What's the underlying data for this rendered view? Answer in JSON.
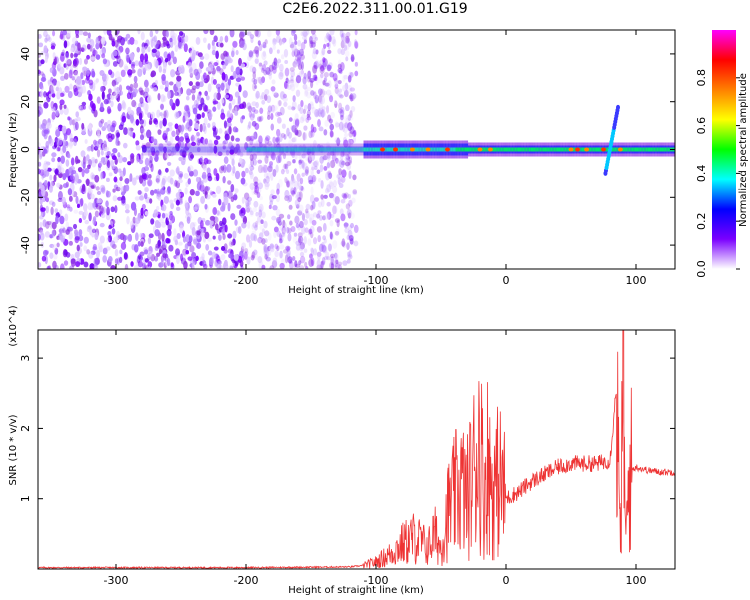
{
  "page": {
    "title": "C2E6.2022.311.00.01.G19"
  },
  "chart_data": [
    {
      "type": "heatmap",
      "title": "C2E6.2022.311.00.01.G19",
      "xlabel": "Height of straight line (km)",
      "ylabel": "Frequency (Hz)",
      "xlim": [
        -360,
        130
      ],
      "ylim": [
        -50,
        50
      ],
      "xticks": [
        -300,
        -200,
        -100,
        0,
        100
      ],
      "yticks": [
        -40,
        -20,
        0,
        20,
        40
      ],
      "colorbar": {
        "label": "Normalized spectral amplitude",
        "range": [
          0.0,
          1.0
        ],
        "ticks": [
          0.0,
          0.2,
          0.4,
          0.6,
          0.8
        ],
        "colors": [
          "#ffffff",
          "#7a00ff",
          "#0000ff",
          "#00ffff",
          "#00ff00",
          "#ffff00",
          "#ff8000",
          "#ff0000",
          "#ff00ff"
        ]
      },
      "features": {
        "noise_region_x": [
          -360,
          -115
        ],
        "signal_band_freq_hz": 0,
        "signal_band_x": [
          -200,
          130
        ],
        "spike_x": 80
      }
    },
    {
      "type": "line",
      "xlabel": "Height of straight line (km)",
      "ylabel": "SNR (10 * v/v)",
      "y_multiplier": "(x10^4)",
      "xlim": [
        -360,
        130
      ],
      "ylim": [
        0,
        3.4
      ],
      "xticks": [
        -300,
        -200,
        -100,
        0,
        100
      ],
      "yticks": [
        1,
        2,
        3
      ],
      "color": "#ee3333",
      "series": [
        {
          "x": [
            -360,
            -300,
            -200,
            -120,
            -110,
            -100,
            -90,
            -80,
            -70,
            -60,
            -55,
            -50,
            -45,
            -40,
            -35,
            -30,
            -25,
            -20,
            -17,
            -15,
            -10,
            -5,
            0,
            10,
            20,
            30,
            40,
            50,
            60,
            70,
            80,
            85,
            88,
            90,
            92,
            95,
            100,
            110,
            120,
            130
          ],
          "y": [
            0.02,
            0.02,
            0.02,
            0.03,
            0.05,
            0.1,
            0.2,
            0.35,
            0.45,
            0.3,
            0.5,
            0.3,
            0.8,
            1.0,
            1.2,
            1.0,
            1.4,
            1.9,
            1.0,
            1.6,
            1.1,
            1.3,
            1.0,
            1.1,
            1.25,
            1.35,
            1.45,
            1.5,
            1.5,
            1.5,
            1.55,
            2.6,
            0.2,
            3.3,
            0.3,
            1.4,
            1.45,
            1.4,
            1.38,
            1.38
          ]
        }
      ]
    }
  ]
}
